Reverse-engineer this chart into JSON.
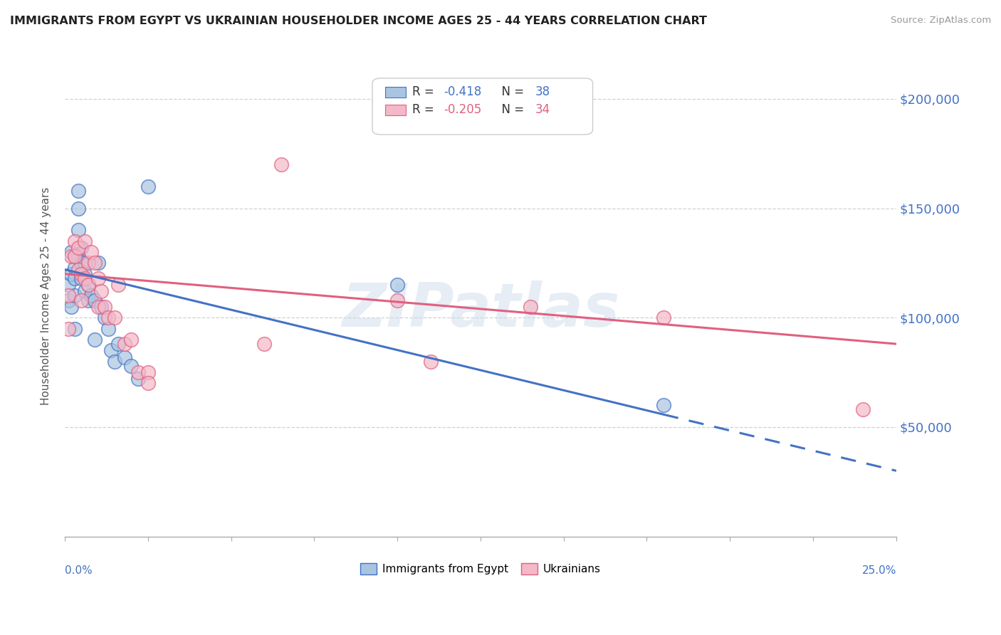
{
  "title": "IMMIGRANTS FROM EGYPT VS UKRAINIAN HOUSEHOLDER INCOME AGES 25 - 44 YEARS CORRELATION CHART",
  "source": "Source: ZipAtlas.com",
  "ylabel": "Householder Income Ages 25 - 44 years",
  "ytick_labels": [
    "$50,000",
    "$100,000",
    "$150,000",
    "$200,000"
  ],
  "ytick_values": [
    50000,
    100000,
    150000,
    200000
  ],
  "legend_label_egypt": "Immigrants from Egypt",
  "legend_label_ukraine": "Ukrainians",
  "color_egypt_fill": "#a8c4e0",
  "color_ukraine_fill": "#f4b8c8",
  "color_egypt_line": "#4472c4",
  "color_ukraine_line": "#e06080",
  "color_blue": "#4472c4",
  "watermark": "ZIPatlas",
  "xlim": [
    0.0,
    0.25
  ],
  "ylim": [
    0,
    220000
  ],
  "egypt_x": [
    0.001,
    0.001,
    0.002,
    0.002,
    0.002,
    0.003,
    0.003,
    0.003,
    0.003,
    0.003,
    0.004,
    0.004,
    0.004,
    0.004,
    0.005,
    0.005,
    0.005,
    0.006,
    0.006,
    0.006,
    0.007,
    0.007,
    0.008,
    0.009,
    0.009,
    0.01,
    0.011,
    0.012,
    0.013,
    0.014,
    0.015,
    0.016,
    0.018,
    0.02,
    0.022,
    0.025,
    0.1,
    0.18
  ],
  "egypt_y": [
    115000,
    108000,
    130000,
    120000,
    105000,
    128000,
    123000,
    118000,
    110000,
    95000,
    158000,
    150000,
    140000,
    128000,
    132000,
    125000,
    118000,
    125000,
    120000,
    112000,
    115000,
    108000,
    110000,
    108000,
    90000,
    125000,
    105000,
    100000,
    95000,
    85000,
    80000,
    88000,
    82000,
    78000,
    72000,
    160000,
    115000,
    60000
  ],
  "ukraine_x": [
    0.001,
    0.001,
    0.002,
    0.003,
    0.003,
    0.004,
    0.004,
    0.005,
    0.005,
    0.006,
    0.006,
    0.007,
    0.007,
    0.008,
    0.009,
    0.01,
    0.01,
    0.011,
    0.012,
    0.013,
    0.015,
    0.016,
    0.018,
    0.02,
    0.022,
    0.025,
    0.025,
    0.06,
    0.065,
    0.1,
    0.11,
    0.14,
    0.18,
    0.24
  ],
  "ukraine_y": [
    110000,
    95000,
    128000,
    135000,
    128000,
    132000,
    122000,
    120000,
    108000,
    135000,
    118000,
    125000,
    115000,
    130000,
    125000,
    118000,
    105000,
    112000,
    105000,
    100000,
    100000,
    115000,
    88000,
    90000,
    75000,
    75000,
    70000,
    88000,
    170000,
    108000,
    80000,
    105000,
    100000,
    58000
  ]
}
